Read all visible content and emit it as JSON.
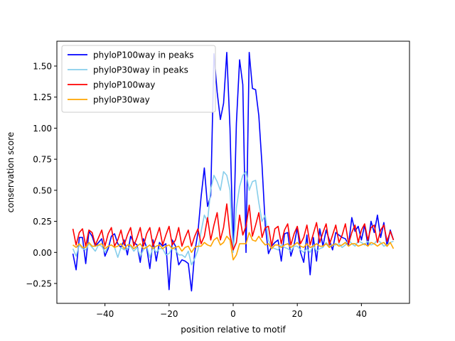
{
  "chart_data": {
    "type": "line",
    "xlabel": "position relative to motif",
    "ylabel": "conservation score",
    "xlim": [
      -55,
      55
    ],
    "ylim": [
      -0.41,
      1.7
    ],
    "xticks": [
      -40,
      -20,
      0,
      20,
      40
    ],
    "yticks": [
      -0.25,
      0.0,
      0.25,
      0.5,
      0.75,
      1.0,
      1.25,
      1.5
    ],
    "xtick_labels": [
      "−40",
      "−20",
      "0",
      "20",
      "40"
    ],
    "ytick_labels": [
      "−0.25",
      "0.00",
      "0.25",
      "0.50",
      "0.75",
      "1.00",
      "1.25",
      "1.50"
    ],
    "grid": false,
    "legend_position": "top-left",
    "x": [
      -50,
      -49,
      -48,
      -47,
      -46,
      -45,
      -44,
      -43,
      -42,
      -41,
      -40,
      -39,
      -38,
      -37,
      -36,
      -35,
      -34,
      -33,
      -32,
      -31,
      -30,
      -29,
      -28,
      -27,
      -26,
      -25,
      -24,
      -23,
      -22,
      -21,
      -20,
      -19,
      -18,
      -17,
      -16,
      -15,
      -14,
      -13,
      -12,
      -11,
      -10,
      -9,
      -8,
      -7,
      -6,
      -5,
      -4,
      -3,
      -2,
      -1,
      0,
      1,
      2,
      3,
      4,
      5,
      6,
      7,
      8,
      9,
      10,
      11,
      12,
      13,
      14,
      15,
      16,
      17,
      18,
      19,
      20,
      21,
      22,
      23,
      24,
      25,
      26,
      27,
      28,
      29,
      30,
      31,
      32,
      33,
      34,
      35,
      36,
      37,
      38,
      39,
      40,
      41,
      42,
      43,
      44,
      45,
      46,
      47,
      48,
      49,
      50
    ],
    "series": [
      {
        "name": "phyloP100way in peaks",
        "color": "#0000ff",
        "values": [
          -0.01,
          -0.14,
          0.12,
          0.12,
          -0.09,
          0.17,
          0.13,
          0.05,
          0.08,
          0.11,
          -0.03,
          0.03,
          0.13,
          0.15,
          0.07,
          0.04,
          0.1,
          -0.02,
          0.13,
          0.08,
          0.06,
          -0.08,
          0.11,
          0.04,
          -0.13,
          0.1,
          -0.07,
          0.08,
          0.05,
          0.07,
          -0.3,
          0.1,
          0.05,
          -0.1,
          -0.06,
          -0.07,
          -0.09,
          -0.31,
          0.0,
          0.16,
          0.45,
          0.68,
          0.37,
          0.46,
          1.6,
          1.29,
          1.07,
          1.2,
          1.61,
          1.0,
          0.03,
          1.04,
          1.55,
          1.35,
          0.0,
          1.61,
          1.32,
          1.31,
          1.1,
          0.7,
          0.22,
          -0.01,
          0.05,
          0.08,
          0.1,
          -0.07,
          0.15,
          0.16,
          -0.03,
          0.06,
          0.2,
          0.0,
          -0.08,
          0.14,
          -0.18,
          0.12,
          -0.07,
          0.19,
          0.05,
          0.18,
          0.1,
          0.02,
          0.16,
          0.14,
          0.12,
          0.11,
          0.06,
          0.28,
          0.17,
          0.21,
          0.1,
          0.22,
          0.06,
          0.25,
          0.16,
          0.3,
          0.12,
          0.24,
          0.05,
          0.18,
          0.1
        ]
      },
      {
        "name": "phyloP30way in peaks",
        "color": "#87ceeb",
        "values": [
          0.03,
          -0.03,
          0.06,
          0.03,
          0.02,
          0.07,
          0.04,
          0.01,
          0.06,
          0.05,
          0.0,
          0.05,
          0.06,
          0.04,
          -0.04,
          0.04,
          0.02,
          0.03,
          0.05,
          0.01,
          0.04,
          -0.03,
          0.02,
          0.05,
          -0.04,
          0.04,
          0.0,
          0.03,
          0.03,
          -0.02,
          -0.01,
          0.04,
          0.02,
          -0.02,
          -0.02,
          -0.04,
          0.01,
          -0.1,
          -0.05,
          0.02,
          0.17,
          0.3,
          0.25,
          0.51,
          0.62,
          0.57,
          0.5,
          0.65,
          0.62,
          0.5,
          0.0,
          0.36,
          0.53,
          0.62,
          0.65,
          0.5,
          0.57,
          0.58,
          0.4,
          0.25,
          0.3,
          0.1,
          0.04,
          0.03,
          0.02,
          0.06,
          0.04,
          0.03,
          0.01,
          0.05,
          0.05,
          0.02,
          0.0,
          0.03,
          0.0,
          0.06,
          0.01,
          0.03,
          0.04,
          0.08,
          0.05,
          0.06,
          0.06,
          0.07,
          0.04,
          0.06,
          0.1,
          0.07,
          0.05,
          0.09,
          0.08,
          0.06,
          0.09,
          0.06,
          0.07,
          0.1,
          0.08,
          0.05,
          0.06,
          0.08,
          0.09
        ]
      },
      {
        "name": "phyloP100way",
        "color": "#ff0000",
        "values": [
          0.19,
          0.06,
          0.16,
          0.19,
          0.05,
          0.18,
          0.16,
          0.06,
          0.12,
          0.18,
          0.05,
          0.15,
          0.2,
          0.05,
          0.1,
          0.18,
          0.06,
          0.14,
          0.2,
          0.05,
          0.12,
          0.2,
          0.05,
          0.15,
          0.2,
          0.05,
          0.12,
          0.2,
          0.06,
          0.14,
          0.21,
          0.06,
          0.1,
          0.2,
          0.05,
          0.12,
          0.18,
          0.05,
          0.13,
          0.19,
          0.07,
          0.13,
          0.28,
          0.1,
          0.22,
          0.32,
          0.1,
          0.2,
          0.39,
          0.14,
          0.02,
          0.08,
          0.3,
          0.14,
          0.21,
          0.38,
          0.13,
          0.22,
          0.32,
          0.12,
          0.2,
          0.21,
          0.05,
          0.19,
          0.21,
          0.07,
          0.18,
          0.23,
          0.06,
          0.15,
          0.21,
          0.07,
          0.12,
          0.22,
          0.06,
          0.15,
          0.24,
          0.08,
          0.16,
          0.23,
          0.06,
          0.14,
          0.22,
          0.08,
          0.14,
          0.23,
          0.07,
          0.16,
          0.22,
          0.08,
          0.18,
          0.23,
          0.1,
          0.2,
          0.22,
          0.08,
          0.18,
          0.22,
          0.09,
          0.17,
          0.1
        ]
      },
      {
        "name": "phyloP30way",
        "color": "#ffa500",
        "values": [
          0.06,
          0.04,
          0.07,
          0.04,
          0.04,
          0.08,
          0.05,
          0.05,
          0.06,
          0.07,
          0.03,
          0.05,
          0.06,
          0.04,
          0.05,
          0.07,
          0.03,
          0.06,
          0.06,
          0.03,
          0.05,
          0.07,
          0.03,
          0.04,
          0.06,
          0.03,
          0.05,
          0.06,
          0.03,
          0.05,
          0.06,
          0.03,
          0.04,
          0.05,
          0.01,
          0.04,
          0.05,
          0.0,
          0.04,
          0.05,
          0.05,
          0.08,
          0.06,
          0.05,
          0.1,
          0.12,
          0.06,
          0.08,
          0.13,
          0.1,
          -0.06,
          -0.02,
          0.07,
          0.07,
          0.07,
          0.16,
          0.1,
          0.09,
          0.13,
          0.09,
          0.06,
          0.07,
          0.03,
          0.06,
          0.06,
          0.04,
          0.06,
          0.07,
          0.04,
          0.06,
          0.08,
          0.05,
          0.04,
          0.07,
          0.04,
          0.05,
          0.07,
          0.05,
          0.05,
          0.07,
          0.04,
          0.06,
          0.07,
          0.05,
          0.06,
          0.08,
          0.05,
          0.07,
          0.07,
          0.05,
          0.06,
          0.07,
          0.05,
          0.08,
          0.07,
          0.05,
          0.07,
          0.08,
          0.05,
          0.08,
          0.03
        ]
      }
    ]
  }
}
